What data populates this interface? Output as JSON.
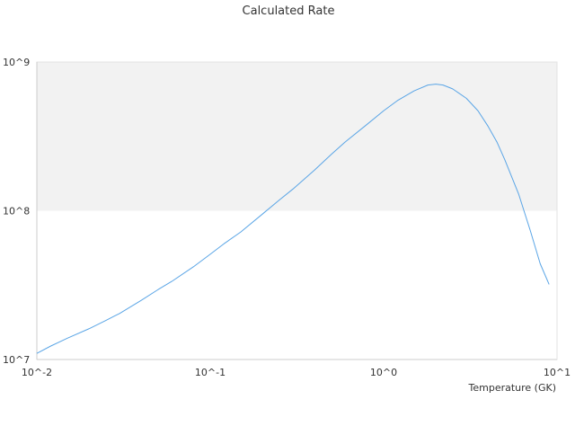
{
  "chart_data": {
    "type": "line",
    "title": "Calculated Rate",
    "xlabel": "Temperature (GK)",
    "ylabel": "",
    "x_scale": "log",
    "y_scale": "log",
    "xlim": [
      0.01,
      10
    ],
    "ylim": [
      10000000,
      1000000000
    ],
    "x_ticks": [
      {
        "value": 0.01,
        "label": "10^-2"
      },
      {
        "value": 0.1,
        "label": "10^-1"
      },
      {
        "value": 1,
        "label": "10^0"
      },
      {
        "value": 10,
        "label": "10^1"
      }
    ],
    "y_ticks": [
      {
        "value": 10000000,
        "label": "10^7"
      },
      {
        "value": 100000000,
        "label": "10^8"
      },
      {
        "value": 1000000000,
        "label": "10^9"
      }
    ],
    "bands": [
      {
        "from": 100000000,
        "to": 1000000000,
        "color": "#f2f2f2"
      }
    ],
    "grid": false,
    "legend": "none",
    "colors": {
      "line": "#5aa5e6",
      "axis": "#cccccc",
      "text": "#333333"
    },
    "series": [
      {
        "x": [
          0.01,
          0.012,
          0.015,
          0.02,
          0.025,
          0.03,
          0.04,
          0.05,
          0.06,
          0.08,
          0.1,
          0.12,
          0.15,
          0.2,
          0.25,
          0.3,
          0.4,
          0.5,
          0.6,
          0.8,
          1.0,
          1.2,
          1.5,
          1.8,
          2.0,
          2.2,
          2.5,
          3.0,
          3.5,
          4.0,
          4.5,
          5.0,
          6.0,
          7.0,
          8.0,
          9.0
        ],
        "y": [
          11000000,
          12300000,
          13900000,
          16100000,
          18300000,
          20400000,
          25000000,
          29500000,
          33500000,
          42000000,
          51000000,
          60000000,
          72000000,
          95000000,
          118000000,
          140000000,
          188000000,
          240000000,
          290000000,
          380000000,
          470000000,
          550000000,
          640000000,
          700000000,
          710000000,
          700000000,
          660000000,
          570000000,
          470000000,
          370000000,
          290000000,
          220000000,
          130000000,
          74000000,
          44000000,
          32000000
        ]
      }
    ]
  }
}
